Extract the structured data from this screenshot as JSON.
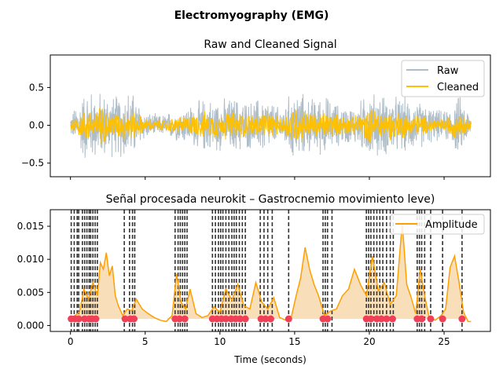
{
  "figure_title": "Electromyography (EMG)",
  "chart_data": [
    {
      "type": "line",
      "title": "Raw and Cleaned Signal",
      "xlabel": "",
      "ylabel": "",
      "xlim": [
        -1.35,
        28.1
      ],
      "ylim": [
        -0.68,
        0.93
      ],
      "x_ticks": [
        0,
        5,
        10,
        15,
        20,
        25
      ],
      "y_ticks": [
        -0.5,
        0.0,
        0.5
      ],
      "y_tick_labels": [
        "−0.5",
        "0.0",
        "0.5"
      ],
      "grid": false,
      "legend": "top-right",
      "x_range": [
        0,
        26.8
      ],
      "series": [
        {
          "name": "Raw",
          "color": "#aebdc8",
          "envelope_time": [
            0,
            1,
            2,
            3,
            4,
            5,
            6,
            7,
            8,
            9,
            10,
            11,
            12,
            13,
            14,
            15,
            16,
            17,
            18,
            19,
            20,
            21,
            22,
            23,
            24,
            25,
            26,
            26.8
          ],
          "envelope_amp": [
            0.15,
            0.55,
            0.5,
            0.45,
            0.55,
            0.2,
            0.15,
            0.22,
            0.3,
            0.4,
            0.38,
            0.42,
            0.35,
            0.45,
            0.25,
            0.55,
            0.4,
            0.45,
            0.3,
            0.28,
            0.5,
            0.45,
            0.42,
            0.38,
            0.28,
            0.2,
            0.45,
            0.15
          ]
        },
        {
          "name": "Cleaned",
          "color": "#ffc000",
          "envelope_time": [
            0,
            1,
            2,
            3,
            4,
            5,
            6,
            7,
            8,
            9,
            10,
            11,
            12,
            13,
            14,
            15,
            16,
            17,
            18,
            19,
            20,
            21,
            22,
            23,
            24,
            25,
            26,
            26.8
          ],
          "envelope_amp": [
            0.08,
            0.25,
            0.28,
            0.2,
            0.25,
            0.1,
            0.08,
            0.12,
            0.15,
            0.2,
            0.2,
            0.22,
            0.18,
            0.22,
            0.12,
            0.3,
            0.2,
            0.22,
            0.15,
            0.14,
            0.25,
            0.22,
            0.2,
            0.18,
            0.14,
            0.1,
            0.22,
            0.08
          ]
        }
      ]
    },
    {
      "type": "line",
      "title": "Señal procesada neurokit – Gastrocnemio movimiento leve)",
      "xlabel": "Time (seconds)",
      "ylabel": "",
      "xlim": [
        -1.35,
        28.1
      ],
      "ylim": [
        -0.0009,
        0.0175
      ],
      "x_ticks": [
        0,
        5,
        10,
        15,
        20,
        25
      ],
      "y_ticks": [
        0.0,
        0.005,
        0.01,
        0.015
      ],
      "y_tick_labels": [
        "0.000",
        "0.005",
        "0.010",
        "0.015"
      ],
      "grid": false,
      "legend": "top-right",
      "series": [
        {
          "name": "Amplitude",
          "color": "#ff9f00",
          "x": [
            0,
            0.3,
            0.6,
            0.9,
            1.2,
            1.5,
            1.8,
            2.0,
            2.2,
            2.4,
            2.6,
            2.8,
            3.0,
            3.2,
            3.5,
            3.8,
            4.1,
            4.4,
            4.8,
            5.2,
            5.6,
            6.0,
            6.4,
            6.8,
            7.1,
            7.4,
            7.7,
            8.0,
            8.4,
            8.8,
            9.2,
            9.6,
            10.0,
            10.4,
            10.8,
            11.2,
            11.6,
            12.0,
            12.4,
            12.8,
            13.2,
            13.6,
            14.0,
            14.4,
            14.8,
            15.1,
            15.4,
            15.7,
            16.0,
            16.3,
            16.6,
            17.0,
            17.4,
            17.8,
            18.2,
            18.6,
            19.0,
            19.4,
            19.8,
            20.2,
            20.6,
            21.0,
            21.4,
            21.8,
            22.2,
            22.5,
            22.8,
            23.1,
            23.4,
            23.7,
            24.0,
            24.4,
            24.8,
            25.1,
            25.4,
            25.7,
            26.0,
            26.3,
            26.6,
            26.8
          ],
          "y": [
            0.0012,
            0.0015,
            0.002,
            0.0055,
            0.004,
            0.0065,
            0.0045,
            0.0095,
            0.0085,
            0.011,
            0.0075,
            0.009,
            0.0045,
            0.003,
            0.0015,
            0.0025,
            0.0022,
            0.004,
            0.0025,
            0.0018,
            0.0012,
            0.0008,
            0.0006,
            0.0015,
            0.0078,
            0.0035,
            0.0025,
            0.0055,
            0.0018,
            0.0012,
            0.0015,
            0.0028,
            0.002,
            0.0055,
            0.0038,
            0.0062,
            0.003,
            0.0025,
            0.0065,
            0.0035,
            0.0025,
            0.0042,
            0.0012,
            0.0008,
            0.0015,
            0.0045,
            0.0072,
            0.0118,
            0.0085,
            0.0062,
            0.0045,
            0.0015,
            0.0022,
            0.0025,
            0.0045,
            0.0055,
            0.0085,
            0.0062,
            0.0045,
            0.0105,
            0.0052,
            0.0065,
            0.0032,
            0.0045,
            0.0155,
            0.0062,
            0.0042,
            0.0018,
            0.0085,
            0.0045,
            0.0012,
            0.0008,
            0.0015,
            0.0025,
            0.0088,
            0.0105,
            0.0065,
            0.002,
            0.0006,
            0.0006
          ]
        },
        {
          "name": "onsets",
          "color": "#333333",
          "vlines": [
            0.05,
            0.25,
            0.45,
            0.55,
            0.8,
            0.95,
            1.1,
            1.25,
            1.35,
            1.5,
            1.65,
            1.8,
            3.6,
            3.95,
            4.15,
            4.3,
            7.0,
            7.2,
            7.35,
            7.5,
            7.65,
            7.8,
            9.5,
            9.7,
            9.9,
            10.05,
            10.2,
            10.4,
            10.6,
            10.8,
            10.95,
            11.1,
            11.3,
            11.5,
            11.7,
            12.7,
            12.95,
            13.2,
            13.5,
            14.6,
            16.9,
            17.05,
            17.2,
            17.5,
            19.8,
            19.95,
            20.1,
            20.3,
            20.5,
            20.7,
            20.9,
            21.15,
            21.4,
            21.6,
            23.2,
            23.35,
            23.5,
            23.7,
            24.1,
            24.9,
            26.2
          ]
        },
        {
          "name": "peaks",
          "color": "#ef4058",
          "x": [
            0.05,
            0.3,
            0.55,
            0.95,
            1.25,
            1.45,
            1.7,
            3.65,
            4.0,
            4.25,
            7.0,
            7.3,
            7.65,
            9.5,
            9.8,
            10.1,
            10.4,
            10.75,
            11.05,
            11.35,
            11.7,
            12.75,
            13.05,
            13.4,
            14.6,
            16.9,
            17.2,
            19.8,
            20.1,
            20.5,
            20.8,
            21.15,
            21.55,
            23.2,
            23.5,
            24.1,
            24.9,
            26.2
          ],
          "y_level": 0.001
        }
      ]
    }
  ]
}
